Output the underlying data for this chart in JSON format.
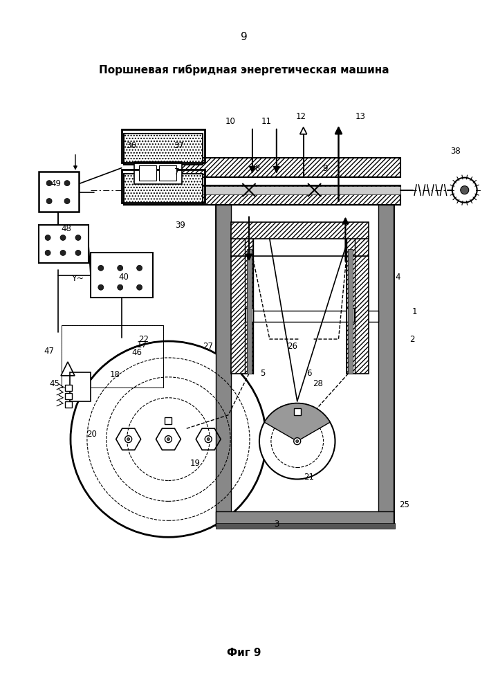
{
  "title": "Поршневая гибридная энергетическая машина",
  "page_number": "9",
  "figure_label": "Фиг 9",
  "bg_color": "#ffffff",
  "line_color": "#000000"
}
